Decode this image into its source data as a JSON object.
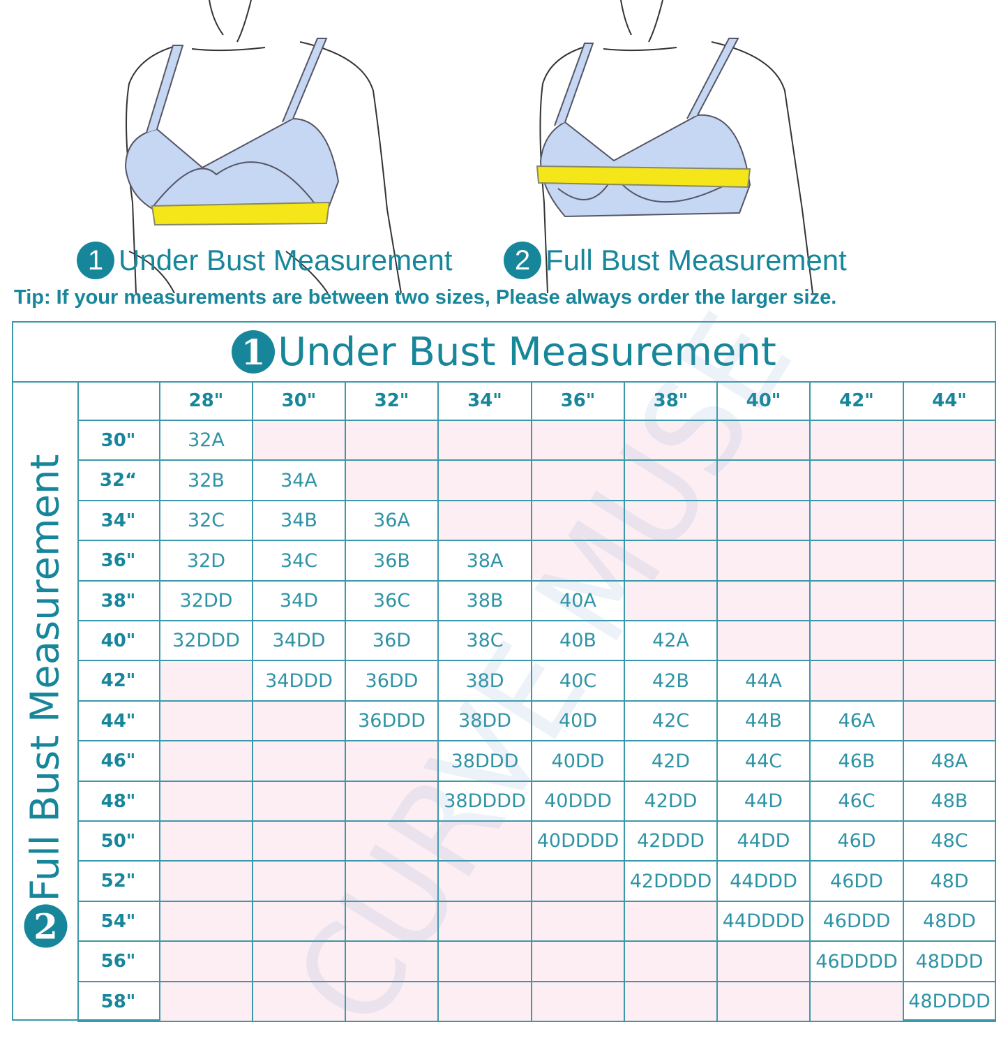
{
  "captions": [
    {
      "num": "1",
      "label": "Under Bust Measurement"
    },
    {
      "num": "2",
      "label": "Full Bust Measurement"
    }
  ],
  "tip": "Tip: If your measurements are between two sizes, Please always order the larger size.",
  "table": {
    "title_num": "1",
    "title": "Under Bust Measurement",
    "side_num": "2",
    "side_label": "Full Bust Measurement",
    "columns": [
      "28\"",
      "30\"",
      "32\"",
      "34\"",
      "36\"",
      "38\"",
      "40\"",
      "42\"",
      "44\""
    ],
    "rows": [
      {
        "label": "30\"",
        "cells": [
          "32A",
          "",
          "",
          "",
          "",
          "",
          "",
          "",
          ""
        ]
      },
      {
        "label": "32“",
        "cells": [
          "32B",
          "34A",
          "",
          "",
          "",
          "",
          "",
          "",
          ""
        ]
      },
      {
        "label": "34\"",
        "cells": [
          "32C",
          "34B",
          "36A",
          "",
          "",
          "",
          "",
          "",
          ""
        ]
      },
      {
        "label": "36\"",
        "cells": [
          "32D",
          "34C",
          "36B",
          "38A",
          "",
          "",
          "",
          "",
          ""
        ]
      },
      {
        "label": "38\"",
        "cells": [
          "32DD",
          "34D",
          "36C",
          "38B",
          "40A",
          "",
          "",
          "",
          ""
        ]
      },
      {
        "label": "40\"",
        "cells": [
          "32DDD",
          "34DD",
          "36D",
          "38C",
          "40B",
          "42A",
          "",
          "",
          ""
        ]
      },
      {
        "label": "42\"",
        "cells": [
          "",
          "34DDD",
          "36DD",
          "38D",
          "40C",
          "42B",
          "44A",
          "",
          ""
        ]
      },
      {
        "label": "44\"",
        "cells": [
          "",
          "",
          "36DDD",
          "38DD",
          "40D",
          "42C",
          "44B",
          "46A",
          ""
        ]
      },
      {
        "label": "46\"",
        "cells": [
          "",
          "",
          "",
          "38DDD",
          "40DD",
          "42D",
          "44C",
          "46B",
          "48A"
        ]
      },
      {
        "label": "48\"",
        "cells": [
          "",
          "",
          "",
          "38DDDD",
          "40DDD",
          "42DD",
          "44D",
          "46C",
          "48B"
        ]
      },
      {
        "label": "50\"",
        "cells": [
          "",
          "",
          "",
          "",
          "40DDDD",
          "42DDD",
          "44DD",
          "46D",
          "48C"
        ]
      },
      {
        "label": "52\"",
        "cells": [
          "",
          "",
          "",
          "",
          "",
          "42DDDD",
          "44DDD",
          "46DD",
          "48D"
        ]
      },
      {
        "label": "54\"",
        "cells": [
          "",
          "",
          "",
          "",
          "",
          "",
          "44DDDD",
          "46DDD",
          "48DD"
        ]
      },
      {
        "label": "56\"",
        "cells": [
          "",
          "",
          "",
          "",
          "",
          "",
          "",
          "46DDDD",
          "48DDD"
        ]
      },
      {
        "label": "58\"",
        "cells": [
          "",
          "",
          "",
          "",
          "",
          "",
          "",
          "",
          "48DDDD"
        ]
      }
    ]
  },
  "watermark": "CURVE MUSE",
  "colors": {
    "accent": "#17869a",
    "border": "#3b98aa",
    "empty_cell": "#fdeef3",
    "bra": "#c6d7f3",
    "tape": "#f5e61a"
  }
}
